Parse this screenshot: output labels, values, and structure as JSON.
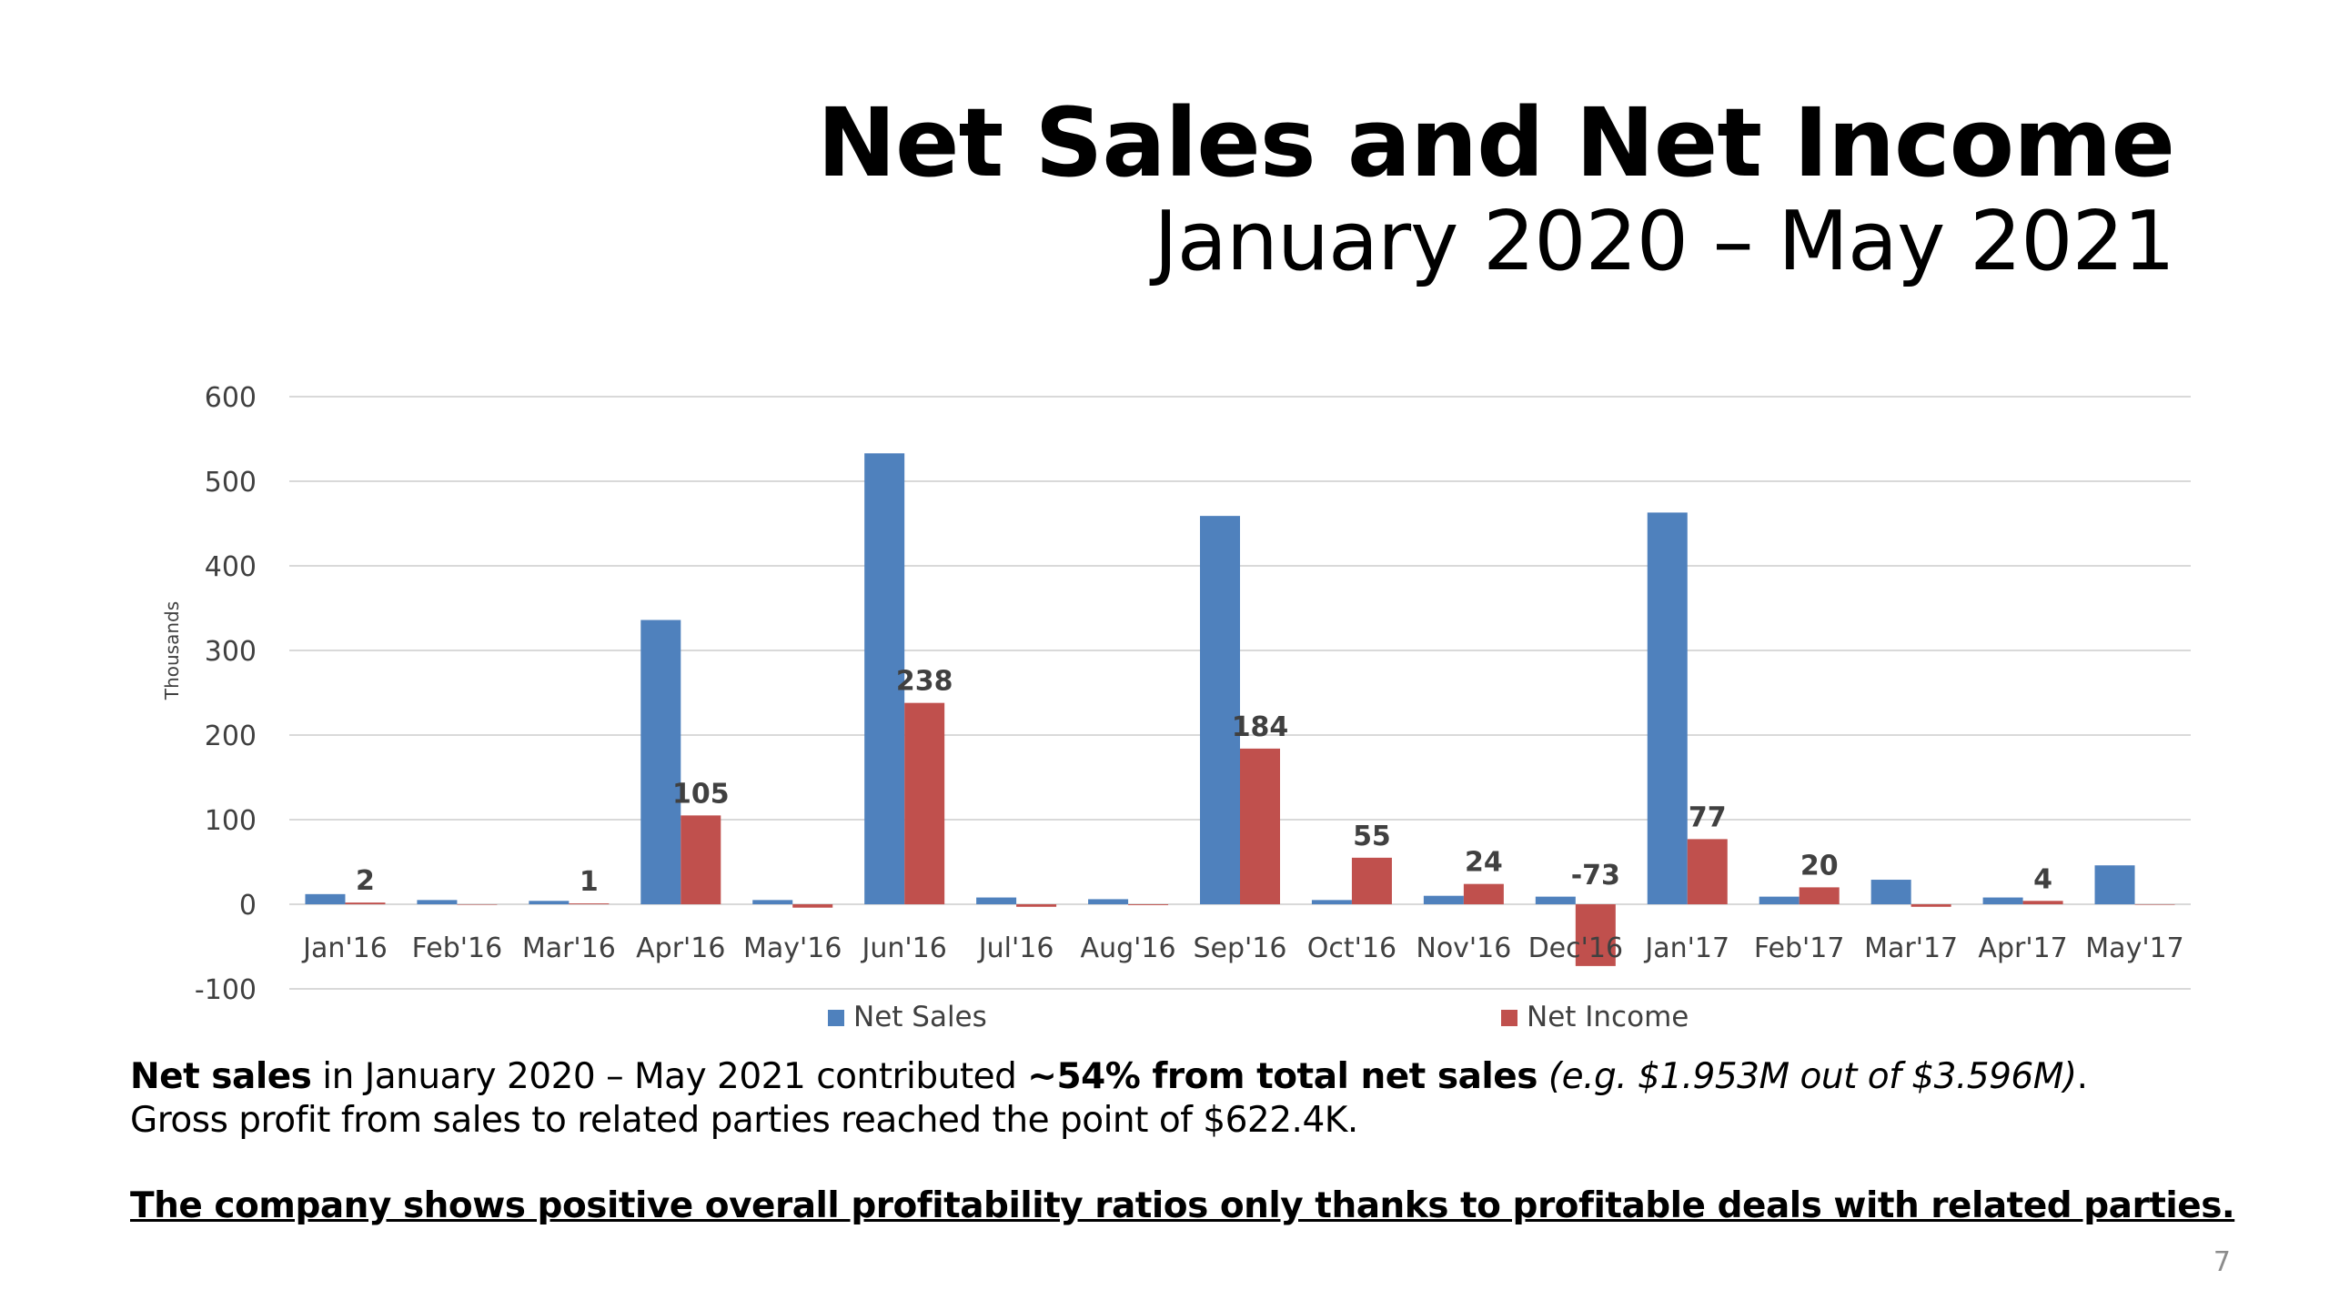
{
  "slide": {
    "title": "Net Sales and Net Income",
    "subtitle": "January 2020 – May 2021",
    "page_number": "7"
  },
  "notes": {
    "line1_bold1": "Net sales",
    "line1_text1": " in January 2020 – May 2021 contributed ",
    "line1_bold2": "~54% from total net sales",
    "line1_text2": " ",
    "line1_italic": "(e.g. $1.953M out of $3.596M)",
    "line1_end": ".",
    "line2": "Gross profit from sales to related parties reached the point of $622.4K.",
    "conclusion": "The company shows positive overall profitability ratios only thanks to profitable deals with related parties."
  },
  "chart_data": {
    "type": "bar",
    "ylabel": "Thousands",
    "ylim": [
      -100,
      600
    ],
    "yticks": [
      -100,
      0,
      100,
      200,
      300,
      400,
      500,
      600
    ],
    "grid": true,
    "legend_position": "bottom",
    "categories": [
      "Jan'16",
      "Feb'16",
      "Mar'16",
      "Apr'16",
      "May'16",
      "Jun'16",
      "Jul'16",
      "Aug'16",
      "Sep'16",
      "Oct'16",
      "Nov'16",
      "Dec'16",
      "Jan'17",
      "Feb'17",
      "Mar'17",
      "Apr'17",
      "May'17"
    ],
    "series": [
      {
        "name": "Net Sales",
        "color": "#4f81bd",
        "values": [
          12,
          5,
          4,
          336,
          5,
          533,
          8,
          6,
          459,
          5,
          10,
          9,
          463,
          9,
          29,
          8,
          46
        ],
        "labels": [
          "",
          "",
          "",
          "",
          "",
          "",
          "",
          "",
          "",
          "",
          "",
          "",
          "",
          "",
          "",
          "",
          ""
        ]
      },
      {
        "name": "Net Income",
        "color": "#c0504d",
        "values": [
          2,
          0,
          1,
          105,
          -4,
          238,
          -3,
          -1,
          184,
          55,
          24,
          -73,
          77,
          20,
          -3,
          4,
          0
        ],
        "labels": [
          "2",
          "",
          "1",
          "105",
          "",
          "238",
          "",
          "",
          "184",
          "55",
          "24",
          "-73",
          "77",
          "20",
          "",
          "4",
          ""
        ]
      }
    ]
  }
}
